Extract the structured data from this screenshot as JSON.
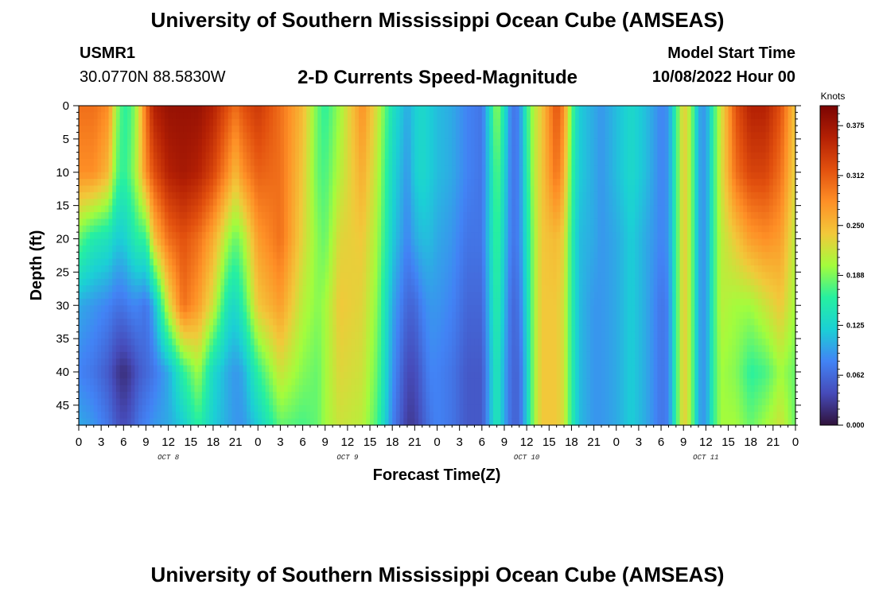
{
  "header": {
    "title": "University of Southern Mississippi Ocean Cube (AMSEAS)",
    "station": "USMR1",
    "coords": "30.0770N  88.5830W",
    "subtitle": "2-D Currents Speed-Magnitude",
    "model_start_label": "Model Start Time",
    "model_start_value": "10/08/2022 Hour 00"
  },
  "footer": {
    "title": "University of Southern Mississippi Ocean Cube (AMSEAS)"
  },
  "chart_data": {
    "type": "heatmap",
    "title": "2-D Currents Speed-Magnitude",
    "xlabel": "Forecast Time(Z)",
    "ylabel": "Depth (ft)",
    "x_range_hours": [
      0,
      96
    ],
    "y_range_ft": [
      0,
      48
    ],
    "x_tick_labels": [
      "0",
      "3",
      "6",
      "9",
      "12",
      "15",
      "18",
      "21",
      "0",
      "3",
      "6",
      "9",
      "12",
      "15",
      "18",
      "21",
      "0",
      "3",
      "6",
      "9",
      "12",
      "15",
      "18",
      "21",
      "0",
      "3",
      "6",
      "9",
      "12",
      "15",
      "18",
      "21",
      "0"
    ],
    "y_ticks": [
      0,
      5,
      10,
      15,
      20,
      25,
      30,
      35,
      40,
      45
    ],
    "day_labels": [
      {
        "label": "OCT 8",
        "hour": 12
      },
      {
        "label": "OCT 9",
        "hour": 36
      },
      {
        "label": "OCT 10",
        "hour": 60
      },
      {
        "label": "OCT 11",
        "hour": 84
      }
    ],
    "colorbar": {
      "unit": "Knots",
      "min": 0.0,
      "max": 0.4,
      "tick_labels": [
        "0.000",
        "0.062",
        "0.125",
        "0.188",
        "0.250",
        "0.312",
        "0.375"
      ],
      "tick_values": [
        0.0,
        0.0625,
        0.125,
        0.1875,
        0.25,
        0.3125,
        0.375
      ]
    },
    "speed_profiles_knots": {
      "hours": [
        0,
        2,
        4,
        5,
        6,
        7,
        8,
        9,
        10,
        12,
        14,
        16,
        18,
        20,
        21,
        22,
        24,
        27,
        30,
        32,
        33,
        35,
        38,
        40,
        42,
        44,
        45,
        46,
        47,
        48,
        50,
        52,
        54,
        55,
        56,
        57,
        58,
        59,
        60,
        61,
        62,
        64,
        65,
        66,
        67,
        69,
        70,
        72,
        74,
        76,
        78,
        79,
        80,
        81,
        82,
        83,
        84,
        85,
        86,
        88,
        90,
        92,
        94,
        96
      ],
      "depths_ft": [
        0,
        10,
        20,
        30,
        40,
        48
      ],
      "surface_to_bottom": [
        [
          0.3,
          0.28,
          0.18,
          0.1,
          0.08,
          0.1
        ],
        [
          0.3,
          0.28,
          0.15,
          0.09,
          0.07,
          0.09
        ],
        [
          0.28,
          0.25,
          0.14,
          0.08,
          0.05,
          0.07
        ],
        [
          0.2,
          0.18,
          0.12,
          0.07,
          0.03,
          0.05
        ],
        [
          0.16,
          0.16,
          0.12,
          0.07,
          0.02,
          0.04
        ],
        [
          0.17,
          0.18,
          0.14,
          0.08,
          0.03,
          0.05
        ],
        [
          0.22,
          0.22,
          0.16,
          0.08,
          0.05,
          0.07
        ],
        [
          0.3,
          0.28,
          0.16,
          0.07,
          0.06,
          0.08
        ],
        [
          0.36,
          0.32,
          0.24,
          0.1,
          0.07,
          0.09
        ],
        [
          0.38,
          0.36,
          0.3,
          0.22,
          0.1,
          0.1
        ],
        [
          0.38,
          0.37,
          0.32,
          0.3,
          0.16,
          0.12
        ],
        [
          0.38,
          0.36,
          0.3,
          0.27,
          0.2,
          0.16
        ],
        [
          0.36,
          0.33,
          0.26,
          0.22,
          0.13,
          0.12
        ],
        [
          0.32,
          0.28,
          0.2,
          0.14,
          0.1,
          0.1
        ],
        [
          0.3,
          0.25,
          0.18,
          0.13,
          0.09,
          0.09
        ],
        [
          0.32,
          0.28,
          0.2,
          0.16,
          0.1,
          0.09
        ],
        [
          0.34,
          0.31,
          0.27,
          0.24,
          0.16,
          0.12
        ],
        [
          0.3,
          0.3,
          0.3,
          0.27,
          0.22,
          0.18
        ],
        [
          0.25,
          0.24,
          0.23,
          0.21,
          0.19,
          0.17
        ],
        [
          0.18,
          0.18,
          0.19,
          0.19,
          0.18,
          0.18
        ],
        [
          0.16,
          0.17,
          0.18,
          0.2,
          0.2,
          0.2
        ],
        [
          0.2,
          0.21,
          0.23,
          0.24,
          0.23,
          0.22
        ],
        [
          0.28,
          0.26,
          0.24,
          0.23,
          0.22,
          0.21
        ],
        [
          0.22,
          0.21,
          0.2,
          0.19,
          0.18,
          0.17
        ],
        [
          0.14,
          0.13,
          0.12,
          0.1,
          0.09,
          0.08
        ],
        [
          0.1,
          0.09,
          0.08,
          0.06,
          0.04,
          0.03
        ],
        [
          0.12,
          0.12,
          0.1,
          0.06,
          0.04,
          0.03
        ],
        [
          0.13,
          0.13,
          0.11,
          0.08,
          0.06,
          0.05
        ],
        [
          0.12,
          0.12,
          0.11,
          0.09,
          0.08,
          0.07
        ],
        [
          0.11,
          0.11,
          0.1,
          0.09,
          0.08,
          0.08
        ],
        [
          0.1,
          0.1,
          0.09,
          0.08,
          0.07,
          0.07
        ],
        [
          0.08,
          0.08,
          0.07,
          0.06,
          0.05,
          0.05
        ],
        [
          0.07,
          0.07,
          0.07,
          0.06,
          0.05,
          0.05
        ],
        [
          0.13,
          0.12,
          0.12,
          0.11,
          0.1,
          0.1
        ],
        [
          0.2,
          0.18,
          0.17,
          0.16,
          0.15,
          0.15
        ],
        [
          0.14,
          0.13,
          0.12,
          0.11,
          0.1,
          0.1
        ],
        [
          0.07,
          0.07,
          0.07,
          0.06,
          0.06,
          0.06
        ],
        [
          0.08,
          0.08,
          0.08,
          0.07,
          0.06,
          0.06
        ],
        [
          0.16,
          0.15,
          0.14,
          0.13,
          0.12,
          0.12
        ],
        [
          0.21,
          0.21,
          0.2,
          0.2,
          0.2,
          0.2
        ],
        [
          0.24,
          0.24,
          0.24,
          0.24,
          0.24,
          0.24
        ],
        [
          0.32,
          0.3,
          0.25,
          0.24,
          0.24,
          0.24
        ],
        [
          0.28,
          0.26,
          0.23,
          0.22,
          0.22,
          0.22
        ],
        [
          0.18,
          0.17,
          0.16,
          0.16,
          0.16,
          0.16
        ],
        [
          0.12,
          0.12,
          0.11,
          0.11,
          0.11,
          0.11
        ],
        [
          0.1,
          0.1,
          0.1,
          0.09,
          0.09,
          0.09
        ],
        [
          0.09,
          0.09,
          0.09,
          0.09,
          0.09,
          0.09
        ],
        [
          0.11,
          0.11,
          0.1,
          0.1,
          0.1,
          0.1
        ],
        [
          0.13,
          0.13,
          0.12,
          0.12,
          0.12,
          0.12
        ],
        [
          0.11,
          0.11,
          0.1,
          0.1,
          0.1,
          0.1
        ],
        [
          0.08,
          0.08,
          0.08,
          0.07,
          0.07,
          0.07
        ],
        [
          0.09,
          0.09,
          0.09,
          0.08,
          0.08,
          0.08
        ],
        [
          0.16,
          0.16,
          0.16,
          0.16,
          0.16,
          0.16
        ],
        [
          0.24,
          0.24,
          0.24,
          0.24,
          0.24,
          0.24
        ],
        [
          0.2,
          0.2,
          0.2,
          0.2,
          0.2,
          0.2
        ],
        [
          0.1,
          0.1,
          0.1,
          0.1,
          0.1,
          0.1
        ],
        [
          0.09,
          0.09,
          0.09,
          0.09,
          0.09,
          0.09
        ],
        [
          0.16,
          0.16,
          0.16,
          0.16,
          0.16,
          0.16
        ],
        [
          0.22,
          0.22,
          0.21,
          0.21,
          0.2,
          0.2
        ],
        [
          0.32,
          0.3,
          0.24,
          0.2,
          0.19,
          0.2
        ],
        [
          0.36,
          0.33,
          0.27,
          0.2,
          0.16,
          0.18
        ],
        [
          0.36,
          0.33,
          0.28,
          0.22,
          0.17,
          0.2
        ],
        [
          0.32,
          0.3,
          0.27,
          0.24,
          0.2,
          0.22
        ],
        [
          0.24,
          0.23,
          0.21,
          0.2,
          0.18,
          0.18
        ]
      ]
    }
  }
}
